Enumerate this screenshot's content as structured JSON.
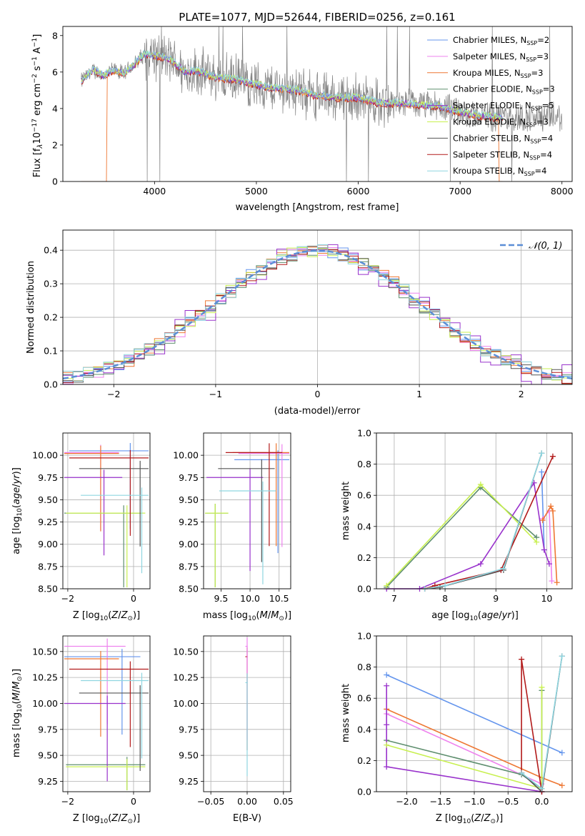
{
  "colors": {
    "Chabrier MILES": "#6495ed",
    "Salpeter MILES": "#ee82ee",
    "Kroupa MILES": "#ee7733",
    "Chabrier ELODIE": "#5f8f6f",
    "Salpeter ELODIE": "#9932cc",
    "Kroupa ELODIE": "#c8f050",
    "Chabrier STELIB": "#555555",
    "Salpeter STELIB": "#b21a1a",
    "Kroupa STELIB": "#8fd6e0",
    "data": "#808080",
    "normal": "#5b8ed6"
  },
  "chart_data": [
    {
      "id": "spectrum",
      "type": "line",
      "title": "PLATE=1077, MJD=52644, FIBERID=0256, z=0.161",
      "xlabel": "wavelength [Angstrom, rest frame]",
      "ylabel": "Flux [f_λ10^-17 erg cm^-2 s^-1 A^-1]",
      "xlim": [
        3100,
        8100
      ],
      "ylim": [
        0,
        8.5
      ],
      "xticks": [
        "4000",
        "5000",
        "6000",
        "7000",
        "8000"
      ],
      "yticks": [
        "0",
        "2",
        "4",
        "6",
        "8"
      ],
      "grid": false,
      "legend_position": "right",
      "legend": [
        {
          "label": "Chabrier MILES, N",
          "nssp": "=2"
        },
        {
          "label": "Salpeter MILES, N",
          "nssp": "=3"
        },
        {
          "label": "Kroupa MILES, N",
          "nssp": "=3"
        },
        {
          "label": "Chabrier ELODIE, N",
          "nssp": "=3"
        },
        {
          "label": "Salpeter ELODIE, N",
          "nssp": "=5"
        },
        {
          "label": "Kroupa ELODIE, N",
          "nssp": "=3"
        },
        {
          "label": "Chabrier STELIB, N",
          "nssp": "=4"
        },
        {
          "label": "Salpeter STELIB, N",
          "nssp": "=4"
        },
        {
          "label": "Kroupa STELIB, N",
          "nssp": "=4"
        }
      ],
      "model_continuum": {
        "x": [
          3280,
          3400,
          3500,
          3600,
          3700,
          3800,
          3900,
          4000,
          4100,
          4200,
          4300,
          4400,
          4600,
          4800,
          5000,
          5200,
          5400,
          5600,
          5800,
          6000,
          6200,
          6400,
          6600,
          6800,
          7000,
          7200,
          7400
        ],
        "y": [
          5.5,
          6.1,
          5.8,
          6.1,
          5.9,
          6.4,
          7.0,
          6.9,
          6.8,
          6.5,
          6.0,
          6.1,
          5.7,
          5.6,
          5.3,
          5.1,
          5.0,
          4.7,
          4.6,
          4.6,
          4.3,
          4.3,
          4.2,
          4.1,
          3.8,
          3.6,
          3.5
        ]
      }
    },
    {
      "id": "residuals",
      "type": "line",
      "xlabel": "(data-model)/error",
      "ylabel": "Normed distribution",
      "xlim": [
        -2.5,
        2.5
      ],
      "ylim": [
        0,
        0.46
      ],
      "xticks": [
        "−2",
        "−1",
        "0",
        "1",
        "2"
      ],
      "yticks": [
        "0.0",
        "0.1",
        "0.2",
        "0.3",
        "0.4"
      ],
      "grid": true,
      "legend_position": "top-right",
      "legend": [
        "𝒩(0, 1)"
      ]
    },
    {
      "id": "age_vs_Z",
      "type": "scatter",
      "xlabel": "Z [log10(Z/Z⊙)]",
      "ylabel": "age [log10(age/yr)]",
      "xlim": [
        -2.15,
        0.5
      ],
      "ylim": [
        8.5,
        10.25
      ],
      "xticks": [
        "−2",
        "0"
      ],
      "yticks": [
        "8.50",
        "8.75",
        "9.00",
        "9.25",
        "9.50",
        "9.75",
        "10.00"
      ],
      "grid": true,
      "points": [
        {
          "series": "Chabrier MILES",
          "x": -0.1,
          "y": 10.05
        },
        {
          "series": "Salpeter MILES",
          "x": -1.0,
          "y": 10.03
        },
        {
          "series": "Kroupa MILES",
          "x": -1.0,
          "y": 10.02
        },
        {
          "series": "Chabrier ELODIE",
          "x": -0.3,
          "y": 9.35
        },
        {
          "series": "Salpeter ELODIE",
          "x": -0.9,
          "y": 9.75
        },
        {
          "series": "Kroupa ELODIE",
          "x": -0.2,
          "y": 9.35
        },
        {
          "series": "Chabrier STELIB",
          "x": 0.2,
          "y": 9.85
        },
        {
          "series": "Salpeter STELIB",
          "x": -0.1,
          "y": 9.97
        },
        {
          "series": "Kroupa STELIB",
          "x": 0.25,
          "y": 9.55
        }
      ]
    },
    {
      "id": "age_vs_mass",
      "type": "scatter",
      "xlabel": "mass [log10(M/M⊙)]",
      "ylabel": "",
      "xlim": [
        9.2,
        10.7
      ],
      "ylim": [
        8.5,
        10.25
      ],
      "xticks": [
        "9.5",
        "10.0",
        "10.5"
      ],
      "yticks": [
        "8.50",
        "8.75",
        "9.00",
        "9.25",
        "9.50",
        "9.75",
        "10.00"
      ],
      "grid": true,
      "points": [
        {
          "series": "Chabrier MILES",
          "x": 10.48,
          "y": 9.95
        },
        {
          "series": "Salpeter MILES",
          "x": 10.55,
          "y": 10.02
        },
        {
          "series": "Kroupa MILES",
          "x": 10.45,
          "y": 10.03
        },
        {
          "series": "Chabrier ELODIE",
          "x": 9.4,
          "y": 9.35
        },
        {
          "series": "Salpeter ELODIE",
          "x": 10.0,
          "y": 9.75
        },
        {
          "series": "Kroupa ELODIE",
          "x": 9.4,
          "y": 9.35
        },
        {
          "series": "Chabrier STELIB",
          "x": 10.2,
          "y": 9.85
        },
        {
          "series": "Salpeter STELIB",
          "x": 10.33,
          "y": 10.03
        },
        {
          "series": "Kroupa STELIB",
          "x": 10.22,
          "y": 9.6
        }
      ]
    },
    {
      "id": "massweight_vs_age",
      "type": "line",
      "xlabel": "age  [log10(age/yr)]",
      "ylabel": "mass weight",
      "xlim": [
        6.65,
        10.5
      ],
      "ylim": [
        0,
        1.0
      ],
      "xticks": [
        "7",
        "8",
        "9",
        "10"
      ],
      "yticks": [
        "0.0",
        "0.2",
        "0.4",
        "0.6",
        "0.8",
        "1.0"
      ],
      "grid": true,
      "series": [
        {
          "name": "Chabrier MILES",
          "x": [
            9.9,
            9.95
          ],
          "y": [
            0.75,
            0.25
          ]
        },
        {
          "name": "Salpeter MILES",
          "x": [
            9.92,
            10.05,
            10.1
          ],
          "y": [
            0.45,
            0.5,
            0.05
          ]
        },
        {
          "name": "Kroupa MILES",
          "x": [
            9.92,
            10.08,
            10.12,
            10.2
          ],
          "y": [
            0.44,
            0.53,
            0.5,
            0.04
          ]
        },
        {
          "name": "Chabrier ELODIE",
          "x": [
            6.85,
            8.7,
            9.8
          ],
          "y": [
            0.01,
            0.65,
            0.33
          ]
        },
        {
          "name": "Salpeter ELODIE",
          "x": [
            6.85,
            7.5,
            8.7,
            9.75,
            9.95,
            10.05
          ],
          "y": [
            0.0,
            0.0,
            0.16,
            0.68,
            0.25,
            0.16
          ]
        },
        {
          "name": "Kroupa ELODIE",
          "x": [
            6.85,
            8.7,
            9.8
          ],
          "y": [
            0.02,
            0.67,
            0.3
          ]
        },
        {
          "name": "Chabrier STELIB",
          "x": [
            7.6,
            7.9,
            9.15,
            9.9
          ],
          "y": [
            0.0,
            0.01,
            0.12,
            0.87
          ]
        },
        {
          "name": "Salpeter STELIB",
          "x": [
            7.6,
            7.8,
            9.1,
            10.12
          ],
          "y": [
            0.0,
            0.02,
            0.12,
            0.85
          ]
        },
        {
          "name": "Kroupa STELIB",
          "x": [
            7.6,
            8.0,
            9.15,
            9.9
          ],
          "y": [
            0.0,
            0.02,
            0.13,
            0.87
          ]
        }
      ]
    },
    {
      "id": "mass_vs_Z",
      "type": "scatter",
      "xlabel": "Z [log10(Z/Z⊙)]",
      "ylabel": "mass [log10(M/M⊙)]",
      "xlim": [
        -2.15,
        0.5
      ],
      "ylim": [
        9.15,
        10.65
      ],
      "xticks": [
        "−2",
        "0"
      ],
      "yticks": [
        "9.25",
        "9.50",
        "9.75",
        "10.00",
        "10.25",
        "10.50"
      ],
      "grid": true,
      "points": [
        {
          "series": "Chabrier MILES",
          "x": -0.35,
          "y": 10.45
        },
        {
          "series": "Salpeter MILES",
          "x": -0.8,
          "y": 10.55
        },
        {
          "series": "Kroupa MILES",
          "x": -1.0,
          "y": 10.43
        },
        {
          "series": "Chabrier ELODIE",
          "x": -0.2,
          "y": 9.41
        },
        {
          "series": "Salpeter ELODIE",
          "x": -0.8,
          "y": 10.0
        },
        {
          "series": "Kroupa ELODIE",
          "x": -0.2,
          "y": 9.39
        },
        {
          "series": "Chabrier STELIB",
          "x": 0.2,
          "y": 10.1
        },
        {
          "series": "Salpeter STELIB",
          "x": -0.1,
          "y": 10.33
        },
        {
          "series": "Kroupa STELIB",
          "x": 0.25,
          "y": 10.22
        }
      ]
    },
    {
      "id": "mass_vs_ebv",
      "type": "scatter",
      "xlabel": "E(B-V)",
      "ylabel": "",
      "xlim": [
        -0.06,
        0.06
      ],
      "ylim": [
        9.15,
        10.65
      ],
      "xticks": [
        "−0.05",
        "0.00",
        "0.05"
      ],
      "yticks": [
        "9.25",
        "9.50",
        "9.75",
        "10.00",
        "10.25",
        "10.50"
      ],
      "grid": true,
      "points": [
        {
          "series": "Salpeter STELIB",
          "x": 0.0,
          "y": 10.45
        },
        {
          "series": "Salpeter MILES",
          "x": 0.0,
          "y": 10.55
        },
        {
          "series": "Kroupa STELIB",
          "x": 0.0,
          "y": 10.2
        }
      ]
    },
    {
      "id": "massweight_vs_Z",
      "type": "line",
      "xlabel": "Z [log10(Z/Z⊙)]",
      "ylabel": "mass weight",
      "xlim": [
        -2.45,
        0.45
      ],
      "ylim": [
        0,
        1.0
      ],
      "xticks": [
        "−2.0",
        "−1.5",
        "−1.0",
        "−0.5",
        "0.0"
      ],
      "yticks": [
        "0.0",
        "0.2",
        "0.4",
        "0.6",
        "0.8",
        "1.0"
      ],
      "grid": true,
      "series": [
        {
          "name": "Chabrier MILES",
          "x": [
            -2.3,
            0.3
          ],
          "y": [
            0.75,
            0.25
          ]
        },
        {
          "name": "Salpeter MILES",
          "x": [
            -2.3,
            0.0
          ],
          "y": [
            0.5,
            0.05
          ]
        },
        {
          "name": "Kroupa MILES",
          "x": [
            -2.3,
            0.0,
            0.3
          ],
          "y": [
            0.53,
            0.09,
            0.04
          ]
        },
        {
          "name": "Chabrier ELODIE",
          "x": [
            -2.3,
            -0.3,
            0.0,
            0.0
          ],
          "y": [
            0.33,
            0.11,
            0.02,
            0.65
          ]
        },
        {
          "name": "Salpeter ELODIE",
          "x": [
            -2.3,
            -2.3,
            -2.3,
            0.0
          ],
          "y": [
            0.68,
            0.43,
            0.16,
            0.0
          ]
        },
        {
          "name": "Kroupa ELODIE",
          "x": [
            -2.3,
            0.0,
            0.0
          ],
          "y": [
            0.3,
            0.02,
            0.67
          ]
        },
        {
          "name": "Chabrier STELIB",
          "x": [
            -0.3,
            0.0,
            0.3
          ],
          "y": [
            0.12,
            0.0,
            0.87
          ]
        },
        {
          "name": "Salpeter STELIB",
          "x": [
            -0.3,
            -0.3,
            0.0
          ],
          "y": [
            0.12,
            0.85,
            0.0
          ]
        },
        {
          "name": "Kroupa STELIB",
          "x": [
            -0.3,
            0.0,
            0.3
          ],
          "y": [
            0.12,
            0.02,
            0.87
          ]
        }
      ]
    }
  ]
}
